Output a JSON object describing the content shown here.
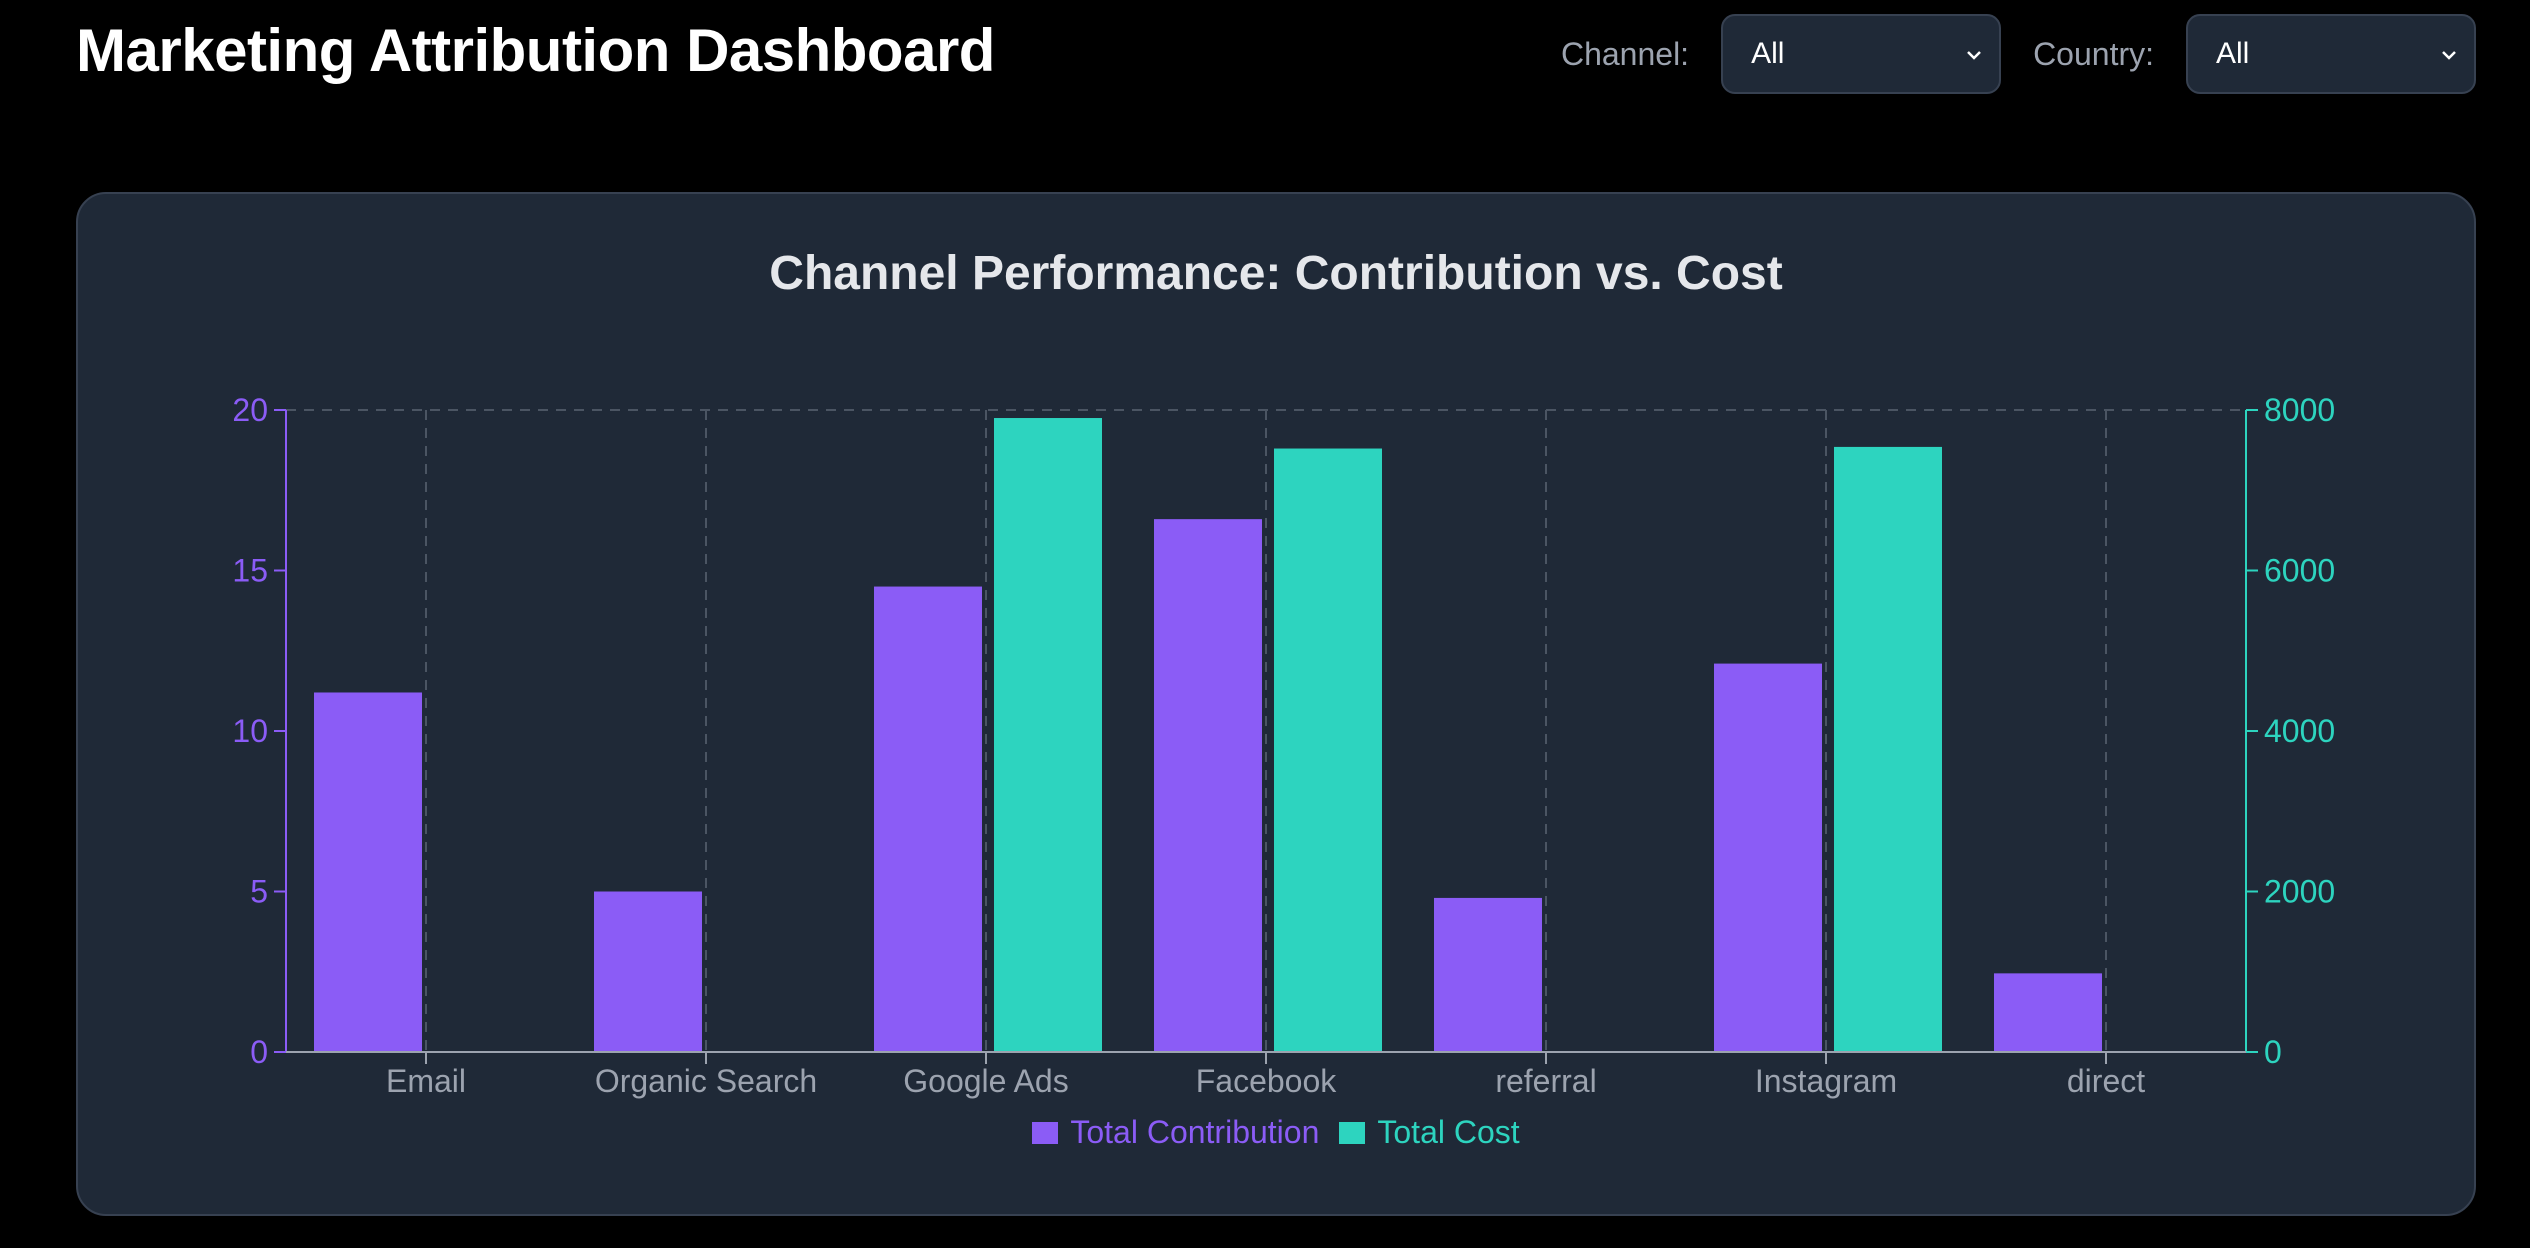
{
  "header": {
    "title": "Marketing Attribution Dashboard",
    "filters": [
      {
        "label": "Channel:",
        "value": "All"
      },
      {
        "label": "Country:",
        "value": "All"
      }
    ]
  },
  "colors": {
    "contribution": "#8b5cf6",
    "cost": "#2dd4bf",
    "grid": "#4b5563",
    "axis_text": "#9ca3af"
  },
  "chart_data": {
    "type": "bar",
    "title": "Channel Performance: Contribution vs. Cost",
    "categories": [
      "Email",
      "Organic Search",
      "Google Ads",
      "Facebook",
      "referral",
      "Instagram",
      "direct"
    ],
    "series": [
      {
        "name": "Total Contribution",
        "axis": "left",
        "values": [
          11.2,
          5.0,
          14.5,
          16.6,
          4.8,
          12.1,
          2.45
        ]
      },
      {
        "name": "Total Cost",
        "axis": "right",
        "values": [
          0,
          0,
          7900,
          7520,
          0,
          7540,
          0
        ]
      }
    ],
    "y_left": {
      "label": "",
      "ylim": [
        0,
        20
      ],
      "ticks": [
        "0",
        "5",
        "10",
        "15",
        "20"
      ]
    },
    "y_right": {
      "label": "",
      "ylim": [
        0,
        8000
      ],
      "ticks": [
        "0",
        "2000",
        "4000",
        "6000",
        "8000"
      ]
    },
    "xlabel": "",
    "grid": true,
    "legend": "bottom-center"
  }
}
